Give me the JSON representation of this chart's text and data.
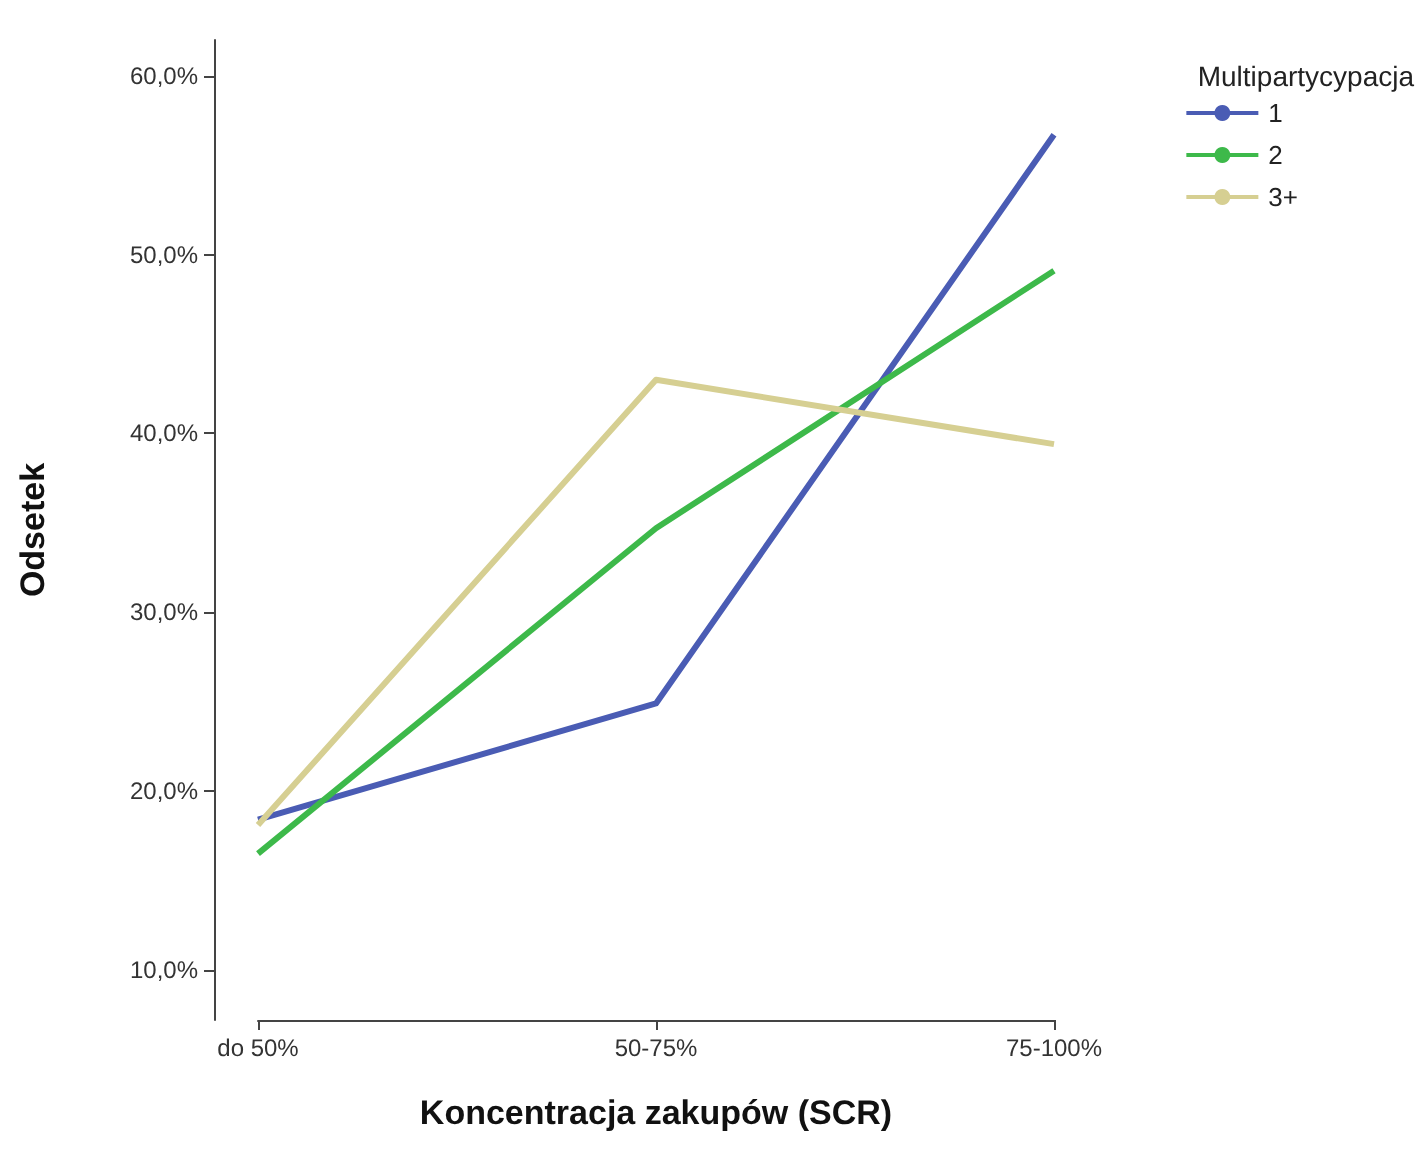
{
  "chart_data": {
    "type": "line",
    "xlabel": "Koncentracja zakupów (SCR)",
    "ylabel": "Odsetek",
    "legend_title": "Multipartycypacja",
    "categories": [
      "do 50%",
      "50-75%",
      "75-100%"
    ],
    "series": [
      {
        "name": "1",
        "color": "#4a5cb4",
        "values": [
          18.4,
          24.9,
          56.7
        ]
      },
      {
        "name": "2",
        "color": "#3db94a",
        "values": [
          16.5,
          34.7,
          49.1
        ]
      },
      {
        "name": "3+",
        "color": "#d6cf92",
        "values": [
          18.1,
          43.0,
          39.4
        ]
      }
    ],
    "ylim": [
      7.2,
      62
    ],
    "yticks": [
      {
        "value": 10,
        "label": "10,0%"
      },
      {
        "value": 20,
        "label": "20,0%"
      },
      {
        "value": 30,
        "label": "30,0%"
      },
      {
        "value": 40,
        "label": "40,0%"
      },
      {
        "value": 50,
        "label": "50,0%"
      },
      {
        "value": 60,
        "label": "60,0%"
      }
    ],
    "grid": false,
    "legend": "top right",
    "marker": "none",
    "line_style": "solid"
  }
}
